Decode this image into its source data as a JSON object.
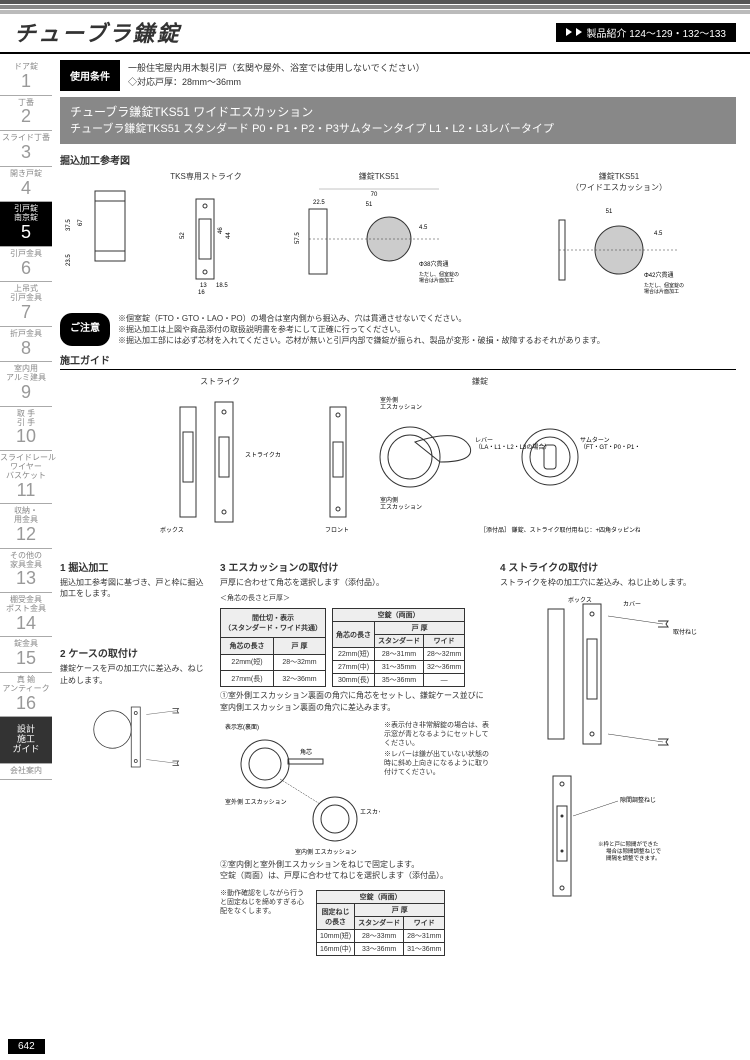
{
  "page_title": "チューブラ鎌錠",
  "header_nav": "製品紹介 124～129・132～133",
  "sidebar": [
    {
      "label": "ドア錠",
      "num": "1"
    },
    {
      "label": "丁番",
      "num": "2"
    },
    {
      "label": "スライド丁番",
      "num": "3"
    },
    {
      "label": "開き戸錠",
      "num": "4"
    },
    {
      "label": "引戸錠\n南京錠",
      "num": "5",
      "active": true
    },
    {
      "label": "引戸金具",
      "num": "6"
    },
    {
      "label": "上吊式\n引戸金具",
      "num": "7"
    },
    {
      "label": "折戸金具",
      "num": "8"
    },
    {
      "label": "室内用\nアルミ建具",
      "num": "9"
    },
    {
      "label": "取 手\n引 手",
      "num": "10"
    },
    {
      "label": "スライドレール\nワイヤー\nバスケット",
      "num": "11"
    },
    {
      "label": "収納・\n用金具",
      "num": "12"
    },
    {
      "label": "その他の\n家具金具",
      "num": "13"
    },
    {
      "label": "棚受金具\nポスト金具",
      "num": "14"
    },
    {
      "label": "錠金具",
      "num": "15"
    },
    {
      "label": "真 鍮\nアンティーク",
      "num": "16"
    },
    {
      "label": "設計\n施工\nガイド",
      "dark": true
    },
    {
      "label": "会社案内"
    }
  ],
  "usage_tag": "使用条件",
  "usage_text1": "一般住宅屋内用木製引戸（玄関や屋外、浴室では使用しないでください）",
  "usage_text2": "◇対応戸厚：28mm～36mm",
  "product_line1": "チューブラ鎌錠TKS51 ワイドエスカッション",
  "product_line2": "チューブラ鎌錠TKS51 スタンダード P0・P1・P2・P3サムターンタイプ L1・L2・L3レバータイプ",
  "ref_label": "掘込加工参考図",
  "dia_titles": [
    "TKS専用ストライク",
    "鎌錠TKS51",
    "鎌錠TKS51\n（ワイドエスカッション）"
  ],
  "dims": {
    "d1a": "37.5",
    "d1b": "67",
    "d1c": "23.5",
    "d2a": "52",
    "d2b": "46",
    "d2c": "44",
    "d2d": "13",
    "d2e": "16",
    "d2f": "18.5",
    "d3a": "70",
    "d3b": "51",
    "d3c": "22.5",
    "d3d": "57.5",
    "d3e": "4.5",
    "d3f": "Φ38穴貫通",
    "d4a": "51",
    "d4b": "4.5",
    "d4c": "Φ42穴貫通"
  },
  "dia_note": "ただし、個室錠の\n場合は片面加工",
  "caution_tag": "ご注意",
  "caution1": "※個室錠（FTO・GTO・LAO・PO）の場合は室内側から掘込み、穴は貫通させないでください。",
  "caution2": "※掘込加工は上図や商品添付の取扱説明書を参考にして正確に行ってください。",
  "caution3": "※掘込加工部には必ず芯材を入れてください。芯材が無いと引戸内部で鎌錠が振られ、製品が変形・破損・故障するおそれがあります。",
  "guide_label": "施工ガイド",
  "guide_cols": [
    "ストライク",
    "鎌錠"
  ],
  "guide_labels": {
    "strike_cover": "ストライクカバー",
    "box": "ボックス",
    "outer_esc": "室外側\nエスカッション",
    "lever": "レバー\n（LA・L1・L2・L3の場合）",
    "inner_esc": "室内側\nエスカッション",
    "front": "フロント",
    "thumb": "サムターン\n（FT・GT・P0・P1・P2・P3の場合）"
  },
  "attachment": "［添付品］\n鎌錠、ストライク取付用ねじ：+四角タッピンねじ 3.5×20 4本",
  "step1_title": "1 掘込加工",
  "step1_text": "掘込加工参考図に基づき、戸と枠に掘込加工をします。",
  "step2_title": "2 ケースの取付け",
  "step2_text": "鎌錠ケースを戸の加工穴に差込み、ねじ止めします。",
  "step3_title": "3 エスカッションの取付け",
  "step3_text": "戸厚に合わせて角芯を選択します（添付品）。",
  "step3_sub": "＜角芯の長さと戸厚＞",
  "table1": {
    "h1": "間仕切・表示\n（スタンダード・ワイド共通）",
    "c1": "角芯の長さ",
    "c2": "戸 厚",
    "r1": [
      "22mm(短)",
      "28～32mm"
    ],
    "r2": [
      "27mm(長)",
      "32～36mm"
    ]
  },
  "table2": {
    "h1": "空錠（両面）",
    "c1": "角芯の長さ",
    "c2": "戸 厚",
    "c2a": "スタンダード",
    "c2b": "ワイド",
    "r1": [
      "22mm(短)",
      "28～31mm",
      "28～32mm"
    ],
    "r2": [
      "27mm(中)",
      "31～35mm",
      "32～36mm"
    ],
    "r3": [
      "30mm(長)",
      "35～36mm",
      "—"
    ]
  },
  "step3_1": "①室外側エスカッション裏面の角穴に角芯をセットし、鎌錠ケース並びに室内側エスカッション裏面の角穴に差込みます。",
  "step3_note1": "※表示付き非常解錠の場合は、表示窓が青となるようにセットしてください。",
  "step3_note2": "※レバーは鎌が出ていない状態の時に斜め上向きになるように取り付けてください。",
  "step3_labels": {
    "disp": "表示窓(裏面)",
    "core": "角芯",
    "outer": "室外側\nエスカッション",
    "inner": "室内側\nエスカッション",
    "screw": "エスカッション\n固定ねじ"
  },
  "step3_2": "②室内側と室外側エスカッションをねじで固定します。\n空錠（両面）は、戸厚に合わせてねじを選択します（添付品）。",
  "step3_note3": "※動作確認をしながら行うと固定ねじを締めすぎる心配をなくします。",
  "table3": {
    "h1": "空錠（両面）",
    "c1": "固定ねじ\nの長さ",
    "c2": "戸 厚",
    "c2a": "スタンダード",
    "c2b": "ワイド",
    "r1": [
      "10mm(短)",
      "28～33mm",
      "28～31mm"
    ],
    "r2": [
      "16mm(中)",
      "33～36mm",
      "31～36mm"
    ]
  },
  "step4_title": "4 ストライクの取付け",
  "step4_text": "ストライクを枠の加工穴に差込み、ねじ止めします。",
  "step4_labels": {
    "box": "ボックス",
    "cover": "カバー",
    "screw": "取付ねじ",
    "adj": "隙間調整ねじ"
  },
  "step4_note": "※枠と戸に隙間ができた場合は隙間調整ねじで間隔を調整できます。",
  "page_num": "642"
}
